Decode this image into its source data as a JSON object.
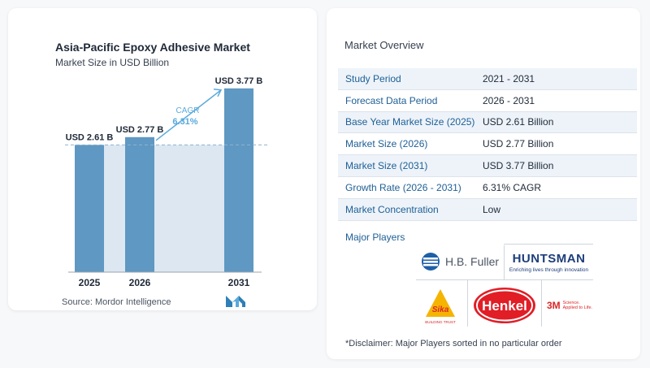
{
  "chart_data": {
    "type": "bar",
    "title": "Asia-Pacific Epoxy Adhesive Market",
    "subtitle": "Market Size in USD Billion",
    "categories": [
      "2025",
      "2026",
      "2031"
    ],
    "values": [
      2.61,
      2.77,
      3.77
    ],
    "value_labels": [
      "USD 2.61 B",
      "USD 2.77 B",
      "USD 3.77 B"
    ],
    "cagr_label": "CAGR",
    "cagr_value": "6.31%",
    "bar_color": "#5f98c2",
    "band_color": "#dce7f1",
    "ylim": [
      0,
      4.0
    ],
    "grid": false
  },
  "source": {
    "text": "Source:  Mordor Intelligence",
    "logo_icon": "mordor-intelligence-logo-icon",
    "logo_color": "#2f7fb8"
  },
  "overview": {
    "title": "Market Overview",
    "rows": [
      {
        "key": "Study Period",
        "value": "2021 - 2031"
      },
      {
        "key": "Forecast Data Period",
        "value": "2026 - 2031"
      },
      {
        "key": "Base Year Market Size (2025)",
        "value": "USD 2.61 Billion"
      },
      {
        "key": "Market Size (2026)",
        "value": "USD 2.77 Billion"
      },
      {
        "key": "Market Size (2031)",
        "value": "USD 3.77 Billion"
      },
      {
        "key": "Growth Rate (2026 - 2031)",
        "value": "6.31% CAGR"
      },
      {
        "key": "Market Concentration",
        "value": "Low"
      }
    ]
  },
  "major_players": {
    "title": "Major Players",
    "logos": {
      "hb_fuller": "H.B. Fuller",
      "huntsman": "HUNTSMAN",
      "huntsman_tagline": "Enriching lives through innovation",
      "sika": "Sika",
      "sika_tagline": "BUILDING TRUST",
      "henkel": "Henkel",
      "three_m": "3M",
      "three_m_tagline_1": "Science.",
      "three_m_tagline_2": "Applied to Life."
    }
  },
  "disclaimer": "*Disclaimer: Major Players sorted in no particular order"
}
